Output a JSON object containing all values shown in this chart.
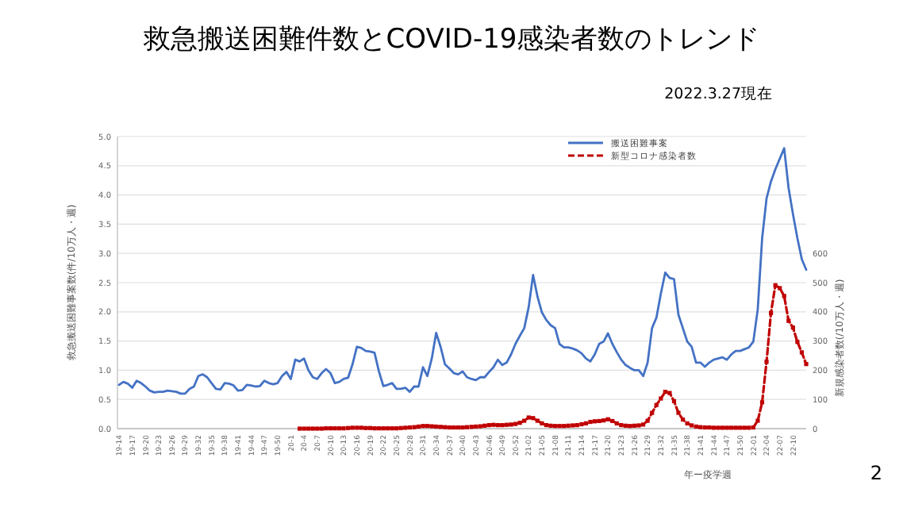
{
  "chart_data": {
    "type": "line",
    "title": "救急搬送困難件数とCOVID-19感染者数のトレンド",
    "ylabel": "救急搬送困難事案数(件/10万人・週)",
    "y2label": "新規感染者数(/10万人・週)",
    "xlabel": "年ー疫学週",
    "annotations": [
      "2022.3.27現在",
      "2"
    ],
    "categories": [
      "19-14",
      null,
      null,
      "19-17",
      null,
      null,
      "19-20",
      null,
      null,
      "19-23",
      null,
      null,
      "19-26",
      null,
      null,
      "19-29",
      null,
      null,
      "19-32",
      null,
      null,
      "19-35",
      null,
      null,
      "19-38",
      null,
      null,
      "19-41",
      null,
      null,
      "19-44",
      null,
      null,
      "19-47",
      null,
      null,
      "19-50",
      null,
      null,
      "20-1",
      null,
      null,
      "20-4",
      null,
      null,
      "20-7",
      null,
      null,
      "20-10",
      null,
      null,
      "20-13",
      null,
      null,
      "20-16",
      null,
      null,
      "20-19",
      null,
      null,
      "20-22",
      null,
      null,
      "20-25",
      null,
      null,
      "20-28",
      null,
      null,
      "20-31",
      null,
      null,
      "20-34",
      null,
      null,
      "20-37",
      null,
      null,
      "20-40",
      null,
      null,
      "20-43",
      null,
      null,
      "20-46",
      null,
      null,
      "20-49",
      null,
      null,
      "20-52",
      null,
      null,
      "21-02",
      null,
      null,
      "21-05",
      null,
      null,
      "21-08",
      null,
      null,
      "21-11",
      null,
      null,
      "21-14",
      null,
      null,
      "21-17",
      null,
      null,
      "21-20",
      null,
      null,
      "21-23",
      null,
      null,
      "21-26",
      null,
      null,
      "21-29",
      null,
      null,
      "21-32",
      null,
      null,
      "21-35",
      null,
      null,
      "21-38",
      null,
      null,
      "21-41",
      null,
      null,
      "21-44",
      null,
      null,
      "21-47",
      null,
      null,
      "21-50",
      null,
      null,
      "22-01",
      null,
      null,
      "22-04",
      null,
      null,
      "22-07",
      null,
      null,
      "22-10",
      null,
      null,
      null
    ],
    "series": [
      {
        "name": "搬送困難事案",
        "color": "#4472c4",
        "marker": "none",
        "line_style": "solid",
        "values": [
          0.75,
          0.8,
          0.77,
          0.7,
          0.82,
          0.78,
          0.72,
          0.65,
          0.62,
          0.63,
          0.63,
          0.65,
          0.64,
          0.63,
          0.6,
          0.6,
          0.68,
          0.72,
          0.9,
          0.93,
          0.88,
          0.78,
          0.68,
          0.67,
          0.78,
          0.77,
          0.74,
          0.65,
          0.66,
          0.75,
          0.74,
          0.72,
          0.73,
          0.82,
          0.78,
          0.76,
          0.78,
          0.9,
          0.97,
          0.85,
          1.18,
          1.15,
          1.2,
          1.0,
          0.88,
          0.85,
          0.95,
          1.02,
          0.95,
          0.78,
          0.8,
          0.85,
          0.87,
          1.1,
          1.4,
          1.38,
          1.33,
          1.32,
          1.3,
          0.98,
          0.73,
          0.75,
          0.78,
          0.68,
          0.68,
          0.7,
          0.63,
          0.72,
          0.72,
          1.05,
          0.9,
          1.2,
          1.64,
          1.4,
          1.1,
          1.03,
          0.95,
          0.93,
          0.98,
          0.88,
          0.85,
          0.83,
          0.88,
          0.88,
          0.97,
          1.05,
          1.18,
          1.09,
          1.13,
          1.27,
          1.45,
          1.59,
          1.72,
          2.08,
          2.63,
          2.26,
          1.99,
          1.86,
          1.77,
          1.72,
          1.45,
          1.39,
          1.39,
          1.37,
          1.34,
          1.29,
          1.2,
          1.15,
          1.27,
          1.45,
          1.49,
          1.63,
          1.45,
          1.31,
          1.18,
          1.09,
          1.04,
          1.0,
          1.0,
          0.9,
          1.13,
          1.72,
          1.9,
          2.31,
          2.67,
          2.58,
          2.56,
          1.95,
          1.72,
          1.49,
          1.4,
          1.13,
          1.13,
          1.06,
          1.13,
          1.18,
          1.2,
          1.22,
          1.18,
          1.27,
          1.33,
          1.33,
          1.36,
          1.39,
          1.49,
          2.04,
          3.26,
          3.94,
          4.23,
          4.44,
          4.62,
          4.8,
          4.12,
          3.67,
          3.26,
          2.9,
          2.72
        ]
      },
      {
        "name": "新型コロナ感染者数",
        "color": "#c00000",
        "axis": "y2",
        "marker": "square",
        "line_style": "dashed",
        "values": [
          null,
          null,
          null,
          null,
          null,
          null,
          null,
          null,
          null,
          null,
          null,
          null,
          null,
          null,
          null,
          null,
          null,
          null,
          null,
          null,
          null,
          null,
          null,
          null,
          null,
          null,
          null,
          null,
          null,
          null,
          null,
          null,
          null,
          null,
          null,
          null,
          null,
          null,
          null,
          null,
          null,
          0,
          0,
          0,
          0,
          0,
          0,
          1,
          1,
          1,
          1,
          1,
          2,
          3,
          3,
          3,
          2,
          2,
          1,
          1,
          1,
          1,
          1,
          1,
          2,
          3,
          4,
          5,
          7,
          9,
          9,
          8,
          7,
          6,
          5,
          4,
          4,
          4,
          4,
          5,
          6,
          7,
          8,
          10,
          12,
          13,
          12,
          12,
          13,
          14,
          16,
          20,
          27,
          38,
          36,
          27,
          18,
          12,
          10,
          9,
          9,
          9,
          10,
          11,
          12,
          15,
          18,
          23,
          25,
          26,
          28,
          32,
          26,
          18,
          12,
          10,
          9,
          10,
          11,
          14,
          27,
          54,
          81,
          103,
          126,
          122,
          94,
          54,
          31,
          18,
          11,
          7,
          5,
          4,
          4,
          3,
          3,
          3,
          3,
          3,
          3,
          3,
          3,
          3,
          4,
          27,
          90,
          229,
          396,
          491,
          481,
          454,
          369,
          346,
          297,
          261,
          221
        ]
      }
    ],
    "ylim": [
      0,
      5
    ],
    "yticks": [
      {
        "value": 0,
        "label": "0.0"
      },
      {
        "value": 0.5,
        "label": "0.5"
      },
      {
        "value": 1,
        "label": "1.0"
      },
      {
        "value": 1.5,
        "label": "1.5"
      },
      {
        "value": 2,
        "label": "2.0"
      },
      {
        "value": 2.5,
        "label": "2.5"
      },
      {
        "value": 3,
        "label": "3.0"
      },
      {
        "value": 3.5,
        "label": "3.5"
      },
      {
        "value": 4,
        "label": "4.0"
      },
      {
        "value": 4.5,
        "label": "4.5"
      },
      {
        "value": 5,
        "label": "5.0"
      }
    ],
    "y2lim": [
      0,
      1000
    ],
    "y2ticks": [
      0,
      100,
      200,
      300,
      400,
      500,
      600
    ],
    "grid": "y",
    "legend": "top right"
  }
}
